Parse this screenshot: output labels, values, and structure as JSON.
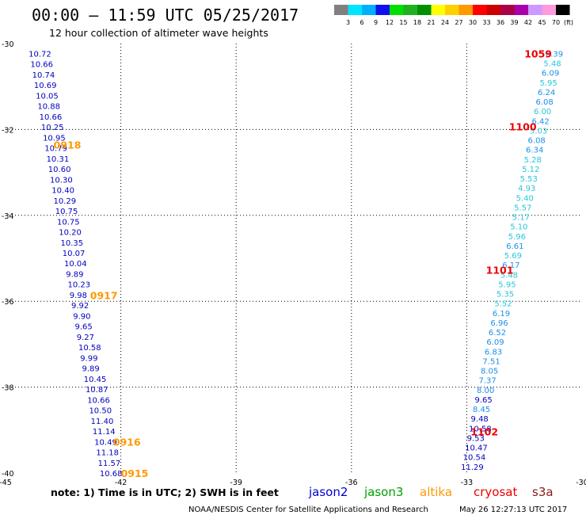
{
  "title": "00:00 – 11:59 UTC 05/25/2017",
  "subtitle": "12 hour collection of altimeter wave heights",
  "note": "note: 1) Time is in UTC; 2) SWH is in feet",
  "footer_left": "NOAA/NESDIS Center for Satellite Applications and Research",
  "footer_right": "May 26 12:27:13 UTC 2017",
  "satellites": [
    {
      "name": "jason2",
      "color": "#0000d0"
    },
    {
      "name": "jason3",
      "color": "#00a000"
    },
    {
      "name": "altika",
      "color": "#ff9900"
    },
    {
      "name": "cryosat",
      "color": "#ee0000"
    },
    {
      "name": "s3a",
      "color": "#8b1a1a"
    }
  ],
  "colorbar": {
    "unit": "(ft)",
    "labels": [
      "3",
      "6",
      "9",
      "12",
      "15",
      "18",
      "21",
      "24",
      "27",
      "30",
      "33",
      "36",
      "39",
      "42",
      "45",
      "70"
    ],
    "colors": [
      "#808080",
      "#00e5ff",
      "#00b0ff",
      "#1010ee",
      "#00e000",
      "#20b020",
      "#009000",
      "#ffff00",
      "#ffd000",
      "#ff9900",
      "#ff0000",
      "#cc0000",
      "#aa0044",
      "#aa00aa",
      "#cc99ff",
      "#ff99dd",
      "#000000"
    ]
  },
  "chart_data": {
    "type": "scatter",
    "xlim": [
      -45,
      -30
    ],
    "ylim": [
      -40,
      -30
    ],
    "xticks": [
      -45,
      -42,
      -39,
      -36,
      -33,
      -30
    ],
    "yticks": [
      -30,
      -32,
      -34,
      -36,
      -38,
      -40
    ],
    "xtick_labels": [
      "-45",
      "-42",
      "-39",
      "-36",
      "-33",
      "-30"
    ],
    "ytick_labels": [
      "-30",
      "-32",
      "-34",
      "-36",
      "-38",
      "-40"
    ],
    "grid": true,
    "tracks": [
      {
        "name": "west",
        "start": [
          -44.4,
          -30.23
        ],
        "end": [
          -42.55,
          -40.0
        ],
        "color": "#0000c0",
        "values": [
          "10.72",
          "10.66",
          "10.74",
          "10.69",
          "10.05",
          "10.88",
          "10.66",
          "10.25",
          "10.95",
          "10.79",
          "10.31",
          "10.60",
          "10.30",
          "10.40",
          "10.29",
          "10.75",
          "10.75",
          "10.20",
          "10.35",
          "10.07",
          "10.04",
          "9.89",
          "10.23",
          "9.98",
          "9.92",
          "9.90",
          "9.65",
          "9.27",
          "10.58",
          "9.99",
          "9.89",
          "10.45",
          "10.87",
          "10.66",
          "10.50",
          "11.40",
          "11.14",
          "10.49",
          "11.18",
          "11.57",
          "10.68"
        ]
      },
      {
        "name": "east",
        "start": [
          -30.95,
          -30.23
        ],
        "end": [
          -33.15,
          -39.85
        ],
        "values": [
          "6.39",
          "5.48",
          "6.09",
          "5.95",
          "6.24",
          "6.08",
          "6.00",
          "6.42",
          "5.03",
          "6.08",
          "6.34",
          "5.28",
          "5.12",
          "5.53",
          "4.93",
          "5.40",
          "5.57",
          "5.17",
          "5.10",
          "5.96",
          "6.61",
          "5.69",
          "6.17",
          "5.48",
          "5.95",
          "5.35",
          "5.52",
          "6.19",
          "6.96",
          "6.52",
          "6.09",
          "6.83",
          "7.51",
          "8.05",
          "7.37",
          "8.00",
          "9.65",
          "8.45",
          "9.48",
          "10.58",
          "9.53",
          "10.47",
          "10.54",
          "11.29"
        ]
      }
    ],
    "pass_labels": [
      {
        "label": "1059",
        "x": -31.5,
        "y": -30.23,
        "color": "#ee0000"
      },
      {
        "label": "1100",
        "x": -31.9,
        "y": -31.93,
        "color": "#ee0000"
      },
      {
        "label": "1101",
        "x": -32.5,
        "y": -35.27,
        "color": "#ee0000"
      },
      {
        "label": "0918",
        "x": -43.75,
        "y": -32.35,
        "color": "#ff9900"
      },
      {
        "label": "0917",
        "x": -42.8,
        "y": -35.86,
        "color": "#ff9900"
      },
      {
        "label": "1102",
        "x": -32.9,
        "y": -39.03,
        "color": "#ee0000"
      },
      {
        "label": "0916",
        "x": -42.2,
        "y": -39.27,
        "color": "#ff9900"
      },
      {
        "label": "0915",
        "x": -42.0,
        "y": -40.0,
        "color": "#ff9900"
      }
    ]
  }
}
